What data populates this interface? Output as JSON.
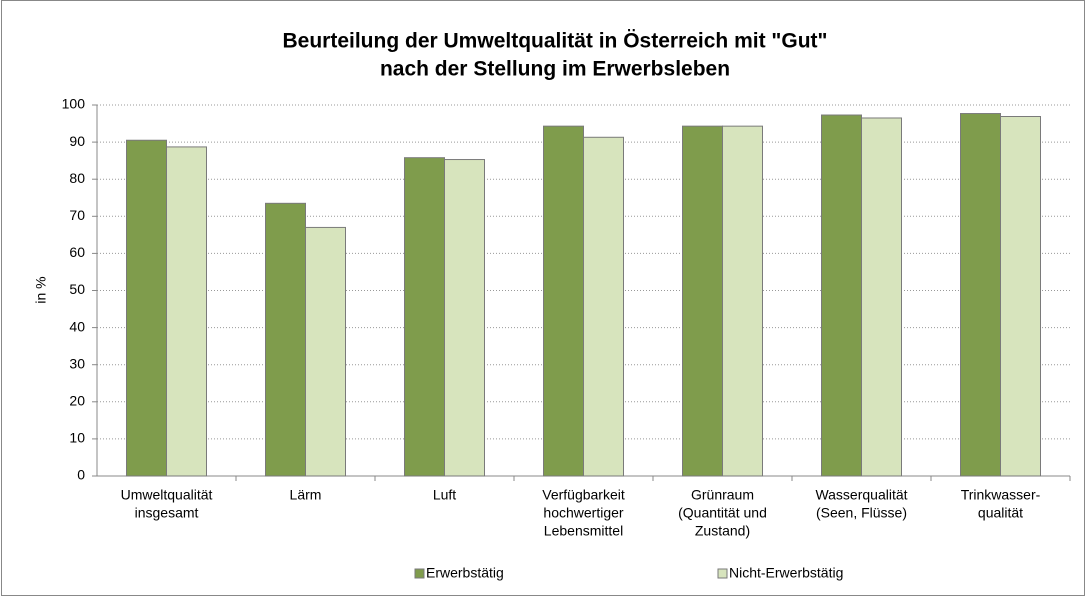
{
  "chart_data": {
    "type": "bar",
    "title": [
      "Beurteilung der Umweltqualität in Österreich mit \"Gut\"",
      "nach der Stellung im Erwerbsleben"
    ],
    "y_label": "in %",
    "categories": [
      [
        "Umweltqualität",
        "insgesamt"
      ],
      [
        "Lärm"
      ],
      [
        "Luft"
      ],
      [
        "Verfügbarkeit",
        "hochwertiger",
        "Lebensmittel"
      ],
      [
        "Grünraum",
        "(Quantität und",
        "Zustand)"
      ],
      [
        "Wasserqualität",
        "(Seen, Flüsse)"
      ],
      [
        "Trinkwasser-",
        "qualität"
      ]
    ],
    "series": [
      {
        "name": "Erwerbstätig",
        "color": "#7f9c4c",
        "values": [
          90.5,
          73.5,
          85.8,
          94.3,
          94.3,
          97.3,
          97.7
        ]
      },
      {
        "name": "Nicht-Erwerbstätig",
        "color": "#d7e4bd",
        "values": [
          88.7,
          67,
          85.3,
          91.3,
          94.3,
          96.5,
          96.9
        ]
      }
    ],
    "ylim": [
      0,
      100
    ],
    "yticks": [
      0,
      10,
      20,
      30,
      40,
      50,
      60,
      70,
      80,
      90,
      100
    ],
    "grid": true,
    "legend": "bottom"
  }
}
